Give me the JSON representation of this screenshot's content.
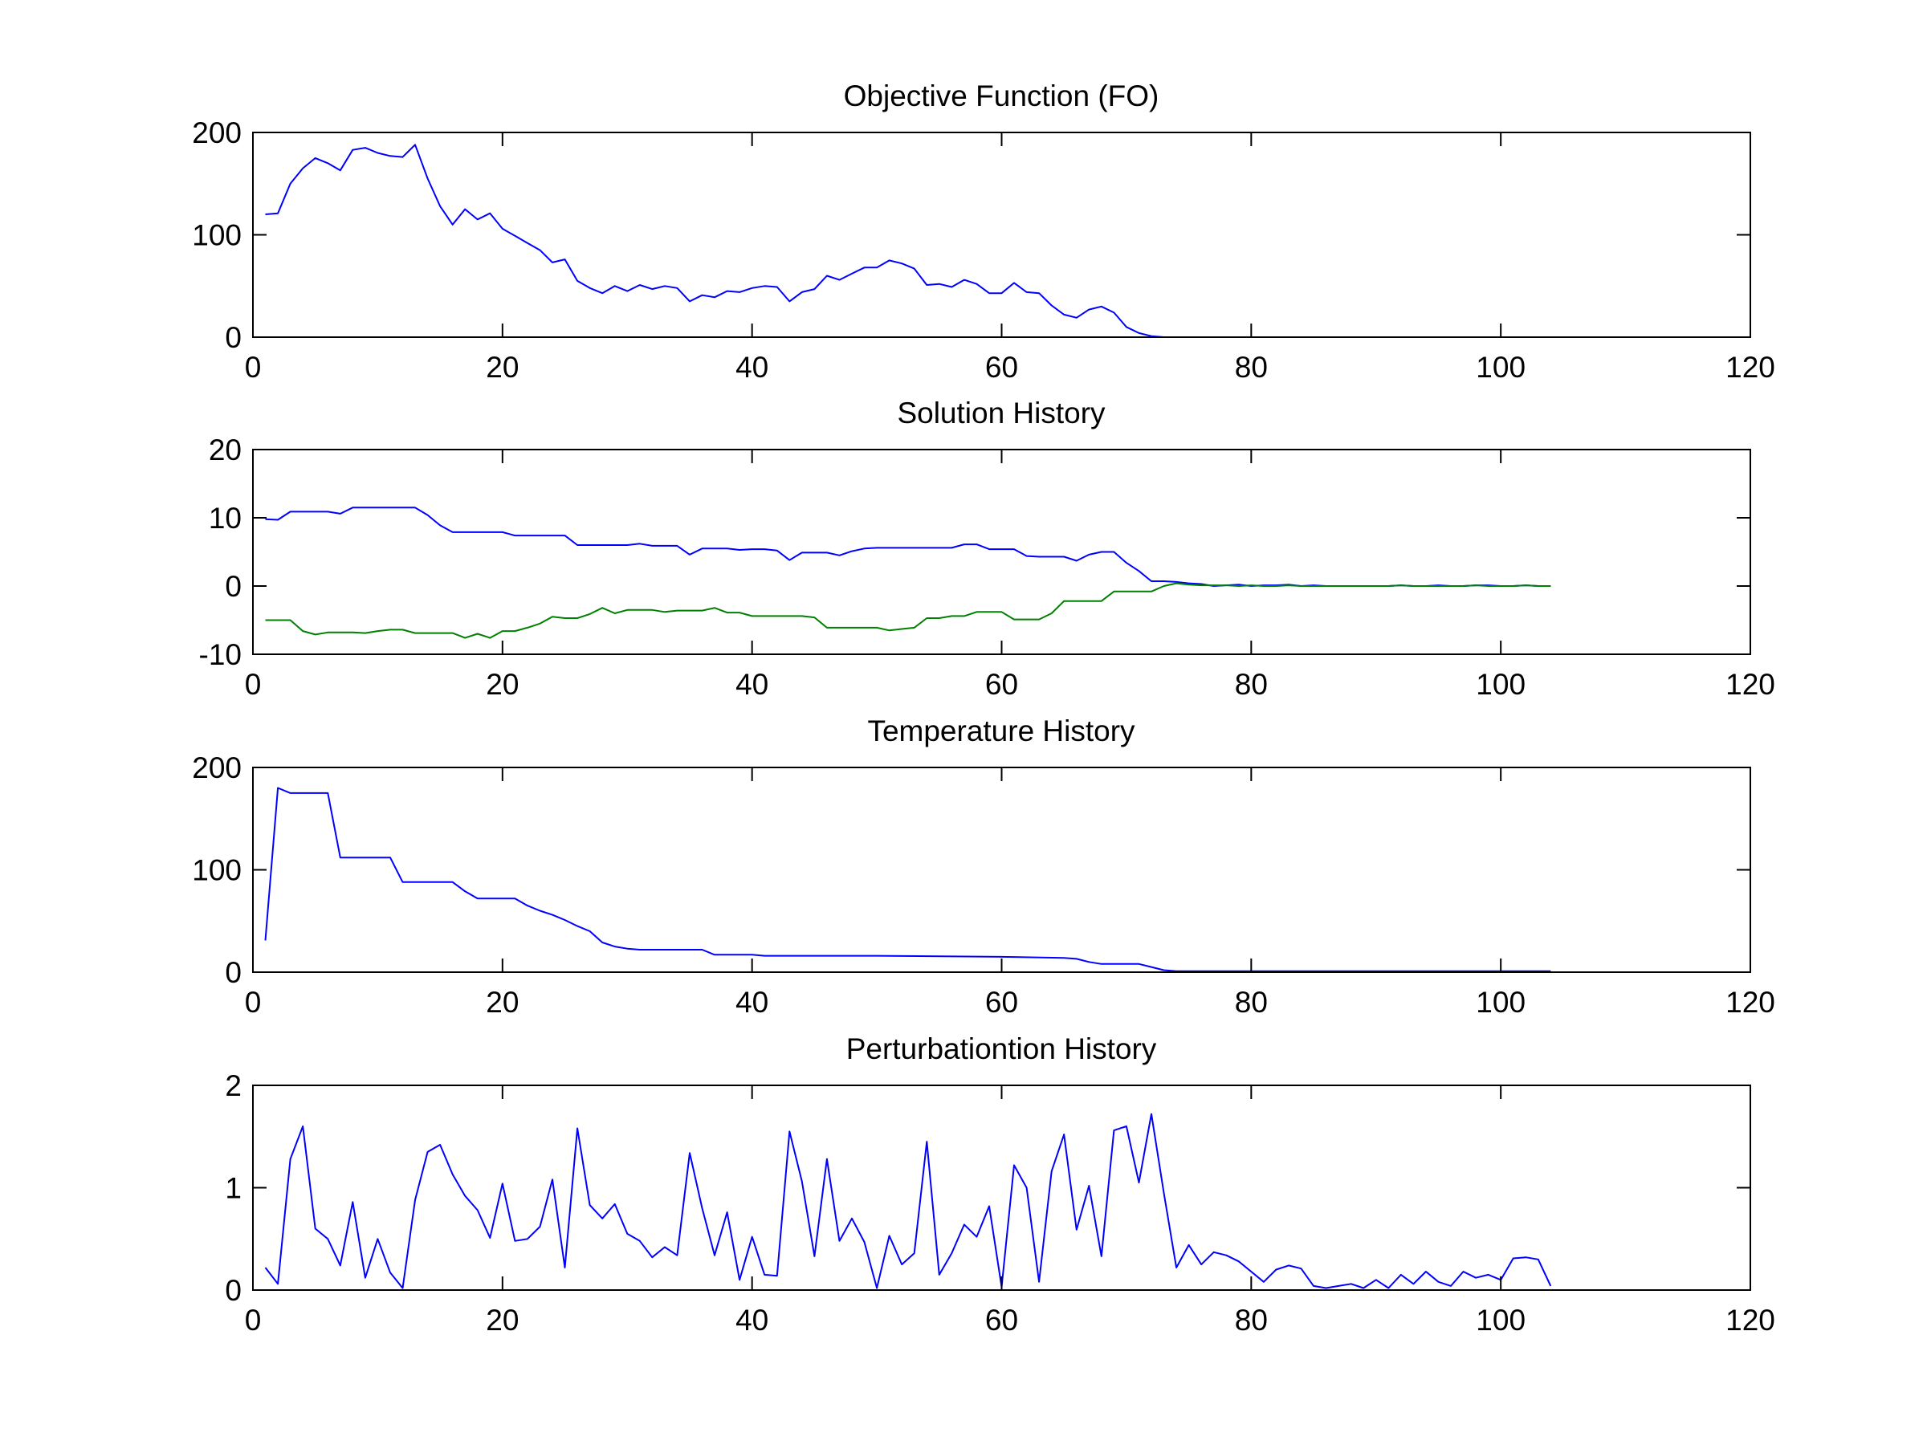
{
  "chart_data": [
    {
      "type": "line",
      "title": "Objective Function (FO)",
      "xlabel": "",
      "ylabel": "",
      "xlim": [
        0,
        120
      ],
      "ylim": [
        0,
        200
      ],
      "xticks": [
        0,
        20,
        40,
        60,
        80,
        100,
        120
      ],
      "yticks": [
        0,
        100,
        200
      ],
      "xtick_labels": [
        "0",
        "20",
        "40",
        "60",
        "80",
        "100",
        "120"
      ],
      "ytick_labels": [
        "0",
        "100",
        "200"
      ],
      "grid": false,
      "series": [
        {
          "color": "#0000ff",
          "x": [
            1,
            2,
            3,
            4,
            5,
            6,
            7,
            8,
            9,
            10,
            11,
            12,
            13,
            14,
            15,
            16,
            17,
            18,
            19,
            20,
            21,
            22,
            23,
            24,
            25,
            26,
            27,
            28,
            29,
            30,
            31,
            32,
            33,
            34,
            35,
            36,
            37,
            38,
            39,
            40,
            41,
            42,
            43,
            44,
            45,
            46,
            47,
            48,
            49,
            50,
            51,
            52,
            53,
            54,
            55,
            56,
            57,
            58,
            59,
            60,
            61,
            62,
            63,
            64,
            65,
            66,
            67,
            68,
            69,
            70,
            71,
            72,
            73,
            74,
            75,
            76,
            77,
            78,
            79,
            80,
            81,
            82,
            83,
            84,
            85,
            86,
            87,
            88,
            89,
            90,
            91,
            92,
            93,
            94,
            95,
            96,
            97,
            98,
            99,
            100,
            101,
            102,
            103,
            104
          ],
          "y": [
            120,
            121,
            150,
            165,
            175,
            170,
            163,
            183,
            185,
            180,
            177,
            176,
            188,
            155,
            128,
            110,
            125,
            115,
            121,
            106,
            99,
            92,
            85,
            73,
            76,
            55,
            48,
            43,
            50,
            45,
            51,
            47,
            50,
            48,
            35,
            41,
            39,
            45,
            44,
            48,
            50,
            49,
            35,
            44,
            47,
            60,
            56,
            62,
            68,
            68,
            75,
            72,
            67,
            51,
            52,
            49,
            56,
            52,
            43,
            43,
            53,
            44,
            43,
            31,
            22,
            19,
            27,
            30,
            24,
            10,
            4,
            1,
            0,
            0,
            0,
            0,
            0,
            0,
            0,
            0,
            0,
            0,
            0,
            0,
            0,
            0,
            0,
            0,
            0,
            0,
            0,
            0,
            0,
            0,
            0,
            0,
            0,
            0,
            0,
            0,
            0,
            0,
            0,
            0
          ]
        }
      ]
    },
    {
      "type": "line",
      "title": "Solution History",
      "xlabel": "",
      "ylabel": "",
      "xlim": [
        0,
        120
      ],
      "ylim": [
        -10,
        20
      ],
      "xticks": [
        0,
        20,
        40,
        60,
        80,
        100,
        120
      ],
      "yticks": [
        -10,
        0,
        10,
        20
      ],
      "xtick_labels": [
        "0",
        "20",
        "40",
        "60",
        "80",
        "100",
        "120"
      ],
      "ytick_labels": [
        "-10",
        "0",
        "10",
        "20"
      ],
      "grid": false,
      "series": [
        {
          "color": "#0000ff",
          "x": [
            1,
            2,
            3,
            4,
            5,
            6,
            7,
            8,
            9,
            10,
            11,
            12,
            13,
            14,
            15,
            16,
            17,
            18,
            19,
            20,
            21,
            22,
            23,
            24,
            25,
            26,
            27,
            28,
            29,
            30,
            31,
            32,
            33,
            34,
            35,
            36,
            37,
            38,
            39,
            40,
            41,
            42,
            43,
            44,
            45,
            46,
            47,
            48,
            49,
            50,
            51,
            52,
            53,
            54,
            55,
            56,
            57,
            58,
            59,
            60,
            61,
            62,
            63,
            64,
            65,
            66,
            67,
            68,
            69,
            70,
            71,
            72,
            73,
            74,
            75,
            76,
            77,
            78,
            79,
            80,
            81,
            82,
            83,
            84,
            85,
            86,
            87,
            88,
            89,
            90,
            91,
            92,
            93,
            94,
            95,
            96,
            97,
            98,
            99,
            100,
            101,
            102,
            103,
            104
          ],
          "y": [
            9.8,
            9.7,
            10.9,
            10.9,
            10.9,
            10.9,
            10.6,
            11.5,
            11.5,
            11.5,
            11.5,
            11.5,
            11.5,
            10.4,
            8.9,
            7.9,
            7.9,
            7.9,
            7.9,
            7.9,
            7.4,
            7.4,
            7.4,
            7.4,
            7.4,
            6,
            6,
            6,
            6,
            6,
            6.2,
            5.9,
            5.9,
            5.9,
            4.6,
            5.5,
            5.5,
            5.5,
            5.3,
            5.4,
            5.4,
            5.2,
            3.8,
            4.9,
            4.9,
            4.9,
            4.5,
            5.1,
            5.5,
            5.6,
            5.6,
            5.6,
            5.6,
            5.6,
            5.6,
            5.6,
            6.1,
            6.1,
            5.4,
            5.4,
            5.4,
            4.4,
            4.3,
            4.3,
            4.3,
            3.7,
            4.6,
            5,
            5,
            3.4,
            2.2,
            0.7,
            0.7,
            0.6,
            0.4,
            0.3,
            0,
            0.1,
            0.2,
            0,
            0.1,
            0.1,
            0.2,
            0,
            0.1,
            0,
            0,
            0,
            0,
            0,
            0,
            0.1,
            0,
            0,
            0.1,
            0,
            0,
            0.1,
            0.1,
            0,
            0,
            0.1,
            0,
            0
          ]
        },
        {
          "color": "#008000",
          "x": [
            1,
            2,
            3,
            4,
            5,
            6,
            7,
            8,
            9,
            10,
            11,
            12,
            13,
            14,
            15,
            16,
            17,
            18,
            19,
            20,
            21,
            22,
            23,
            24,
            25,
            26,
            27,
            28,
            29,
            30,
            31,
            32,
            33,
            34,
            35,
            36,
            37,
            38,
            39,
            40,
            41,
            42,
            43,
            44,
            45,
            46,
            47,
            48,
            49,
            50,
            51,
            52,
            53,
            54,
            55,
            56,
            57,
            58,
            59,
            60,
            61,
            62,
            63,
            64,
            65,
            66,
            67,
            68,
            69,
            70,
            71,
            72,
            73,
            74,
            75,
            76,
            77,
            78,
            79,
            80,
            81,
            82,
            83,
            84,
            85,
            86,
            87,
            88,
            89,
            90,
            91,
            92,
            93,
            94,
            95,
            96,
            97,
            98,
            99,
            100,
            101,
            102,
            103,
            104
          ],
          "y": [
            -5,
            -5,
            -5,
            -6.6,
            -7.1,
            -6.8,
            -6.8,
            -6.8,
            -6.9,
            -6.6,
            -6.4,
            -6.4,
            -6.9,
            -6.9,
            -6.9,
            -6.9,
            -7.6,
            -7,
            -7.6,
            -6.6,
            -6.6,
            -6.1,
            -5.5,
            -4.5,
            -4.7,
            -4.7,
            -4.1,
            -3.2,
            -4,
            -3.5,
            -3.5,
            -3.5,
            -3.8,
            -3.6,
            -3.6,
            -3.6,
            -3.2,
            -3.9,
            -3.9,
            -4.4,
            -4.4,
            -4.4,
            -4.4,
            -4.4,
            -4.6,
            -6.1,
            -6.1,
            -6.1,
            -6.1,
            -6.1,
            -6.5,
            -6.3,
            -6.1,
            -4.7,
            -4.7,
            -4.4,
            -4.4,
            -3.8,
            -3.8,
            -3.8,
            -4.9,
            -4.9,
            -4.9,
            -4,
            -2.2,
            -2.2,
            -2.2,
            -2.2,
            -0.8,
            -0.8,
            -0.8,
            -0.8,
            0,
            0.4,
            0.2,
            0.1,
            0.1,
            0.1,
            0,
            0.1,
            0,
            0,
            0.1,
            0,
            0,
            0,
            0,
            0,
            0,
            0,
            0,
            0.1,
            0,
            0,
            0,
            0,
            0,
            0.1,
            0,
            0,
            0,
            0.1,
            0,
            0
          ]
        }
      ]
    },
    {
      "type": "line",
      "title": "Temperature History",
      "xlabel": "",
      "ylabel": "",
      "xlim": [
        0,
        120
      ],
      "ylim": [
        0,
        200
      ],
      "xticks": [
        0,
        20,
        40,
        60,
        80,
        100,
        120
      ],
      "yticks": [
        0,
        100,
        200
      ],
      "xtick_labels": [
        "0",
        "20",
        "40",
        "60",
        "80",
        "100",
        "120"
      ],
      "ytick_labels": [
        "0",
        "100",
        "200"
      ],
      "grid": false,
      "series": [
        {
          "color": "#0000ff",
          "x": [
            1,
            2,
            3,
            6,
            7,
            8,
            11,
            12,
            13,
            16,
            17,
            18,
            21,
            22,
            23,
            24,
            25,
            26,
            27,
            28,
            29,
            30,
            31,
            32,
            36,
            37,
            40,
            41,
            50,
            60,
            65,
            66,
            67,
            68,
            71,
            72,
            73,
            74,
            75,
            104
          ],
          "y": [
            31,
            180,
            175,
            175,
            112,
            112,
            112,
            88,
            88,
            88,
            79,
            72,
            72,
            65,
            60,
            56,
            51,
            45,
            40,
            29,
            25,
            23,
            22,
            22,
            22,
            17,
            17,
            16,
            16,
            15,
            14,
            13,
            10,
            8,
            8,
            5,
            2,
            1,
            1,
            1
          ]
        }
      ]
    },
    {
      "type": "line",
      "title": "Perturbationtion History",
      "xlabel": "",
      "ylabel": "",
      "xlim": [
        0,
        120
      ],
      "ylim": [
        0,
        2
      ],
      "xticks": [
        0,
        20,
        40,
        60,
        80,
        100,
        120
      ],
      "yticks": [
        0,
        1,
        2
      ],
      "xtick_labels": [
        "0",
        "20",
        "40",
        "60",
        "80",
        "100",
        "120"
      ],
      "ytick_labels": [
        "0",
        "1",
        "2"
      ],
      "grid": false,
      "series": [
        {
          "color": "#0000ff",
          "x": [
            1,
            2,
            3,
            4,
            5,
            6,
            7,
            8,
            9,
            10,
            11,
            12,
            13,
            14,
            15,
            16,
            17,
            18,
            19,
            20,
            21,
            22,
            23,
            24,
            25,
            26,
            27,
            28,
            29,
            30,
            31,
            32,
            33,
            34,
            35,
            36,
            37,
            38,
            39,
            40,
            41,
            42,
            43,
            44,
            45,
            46,
            47,
            48,
            49,
            50,
            51,
            52,
            53,
            54,
            55,
            56,
            57,
            58,
            59,
            60,
            61,
            62,
            63,
            64,
            65,
            66,
            67,
            68,
            69,
            70,
            71,
            72,
            73,
            74,
            75,
            76,
            77,
            78,
            79,
            80,
            81,
            82,
            83,
            84,
            85,
            86,
            87,
            88,
            89,
            90,
            91,
            92,
            93,
            94,
            95,
            96,
            97,
            98,
            99,
            100,
            101,
            102,
            103,
            104
          ],
          "y": [
            0.22,
            0.06,
            1.28,
            1.6,
            0.6,
            0.5,
            0.24,
            0.86,
            0.12,
            0.5,
            0.17,
            0.02,
            0.88,
            1.35,
            1.42,
            1.13,
            0.92,
            0.78,
            0.51,
            1.04,
            0.48,
            0.5,
            0.62,
            1.08,
            0.22,
            1.58,
            0.83,
            0.7,
            0.84,
            0.55,
            0.48,
            0.32,
            0.42,
            0.34,
            1.34,
            0.8,
            0.34,
            0.76,
            0.1,
            0.52,
            0.15,
            0.14,
            1.55,
            1.06,
            0.33,
            1.28,
            0.48,
            0.7,
            0.47,
            0.02,
            0.53,
            0.25,
            0.36,
            1.45,
            0.15,
            0.36,
            0.64,
            0.52,
            0.82,
            0.03,
            1.22,
            1,
            0.08,
            1.16,
            1.52,
            0.59,
            1.02,
            0.33,
            1.56,
            1.6,
            1.05,
            1.72,
            0.95,
            0.22,
            0.44,
            0.25,
            0.37,
            0.34,
            0.28,
            0.18,
            0.08,
            0.2,
            0.24,
            0.21,
            0.04,
            0.02,
            0.04,
            0.06,
            0.02,
            0.1,
            0.02,
            0.15,
            0.06,
            0.18,
            0.08,
            0.04,
            0.18,
            0.12,
            0.15,
            0.1,
            0.31,
            0.32,
            0.3,
            0.04
          ]
        }
      ]
    }
  ]
}
